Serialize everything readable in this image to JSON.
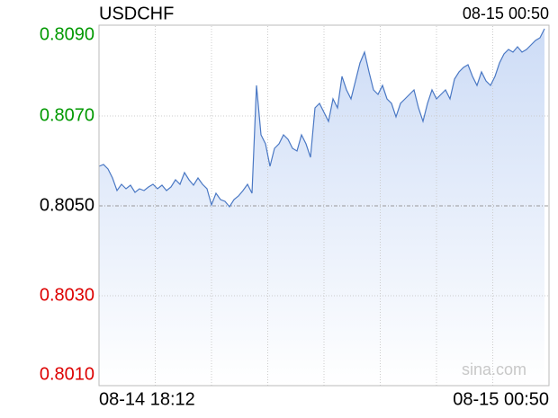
{
  "chart_data": {
    "type": "line",
    "title": "USDCHF",
    "updated": "08-15 00:50",
    "watermark": "sina.com",
    "categories": [
      "08-14 18:12",
      null,
      null,
      null,
      null,
      null,
      null,
      null,
      null,
      null,
      null,
      null,
      null,
      null,
      null,
      null,
      null,
      null,
      null,
      null,
      null,
      null,
      null,
      null,
      null,
      null,
      null,
      null,
      null,
      null,
      null,
      null,
      null,
      null,
      null,
      null,
      null,
      null,
      null,
      null,
      null,
      null,
      null,
      null,
      null,
      null,
      null,
      null,
      null,
      null,
      null,
      null,
      null,
      null,
      null,
      null,
      null,
      null,
      null,
      null,
      null,
      null,
      null,
      null,
      null,
      null,
      null,
      null,
      null,
      null,
      null,
      null,
      null,
      null,
      null,
      null,
      null,
      null,
      null,
      null,
      null,
      null,
      null,
      null,
      null,
      null,
      null,
      null,
      null,
      null,
      null,
      null,
      null,
      null,
      null,
      null,
      null,
      null,
      null,
      "08-15 00:50"
    ],
    "values": [
      0.80588,
      0.80592,
      0.80582,
      0.80562,
      0.80534,
      0.80548,
      0.80538,
      0.80546,
      0.8053,
      0.80538,
      0.80534,
      0.80542,
      0.80548,
      0.80538,
      0.80546,
      0.80534,
      0.80542,
      0.80558,
      0.80548,
      0.80574,
      0.80558,
      0.80546,
      0.80562,
      0.80548,
      0.80538,
      0.80502,
      0.80528,
      0.80514,
      0.8051,
      0.80498,
      0.80514,
      0.80522,
      0.80534,
      0.80548,
      0.80528,
      0.80768,
      0.80658,
      0.80638,
      0.80588,
      0.80628,
      0.80638,
      0.80658,
      0.80648,
      0.80628,
      0.80622,
      0.80658,
      0.80638,
      0.80608,
      0.80718,
      0.80728,
      0.80708,
      0.80688,
      0.80738,
      0.80718,
      0.80788,
      0.80758,
      0.80738,
      0.80778,
      0.80818,
      0.80842,
      0.80798,
      0.80758,
      0.80748,
      0.80768,
      0.80738,
      0.80728,
      0.80698,
      0.80728,
      0.80738,
      0.80748,
      0.80758,
      0.80718,
      0.80688,
      0.80728,
      0.80758,
      0.80738,
      0.80748,
      0.80758,
      0.80738,
      0.80782,
      0.80798,
      0.80808,
      0.80814,
      0.80788,
      0.80768,
      0.80798,
      0.80778,
      0.80768,
      0.80788,
      0.80818,
      0.80838,
      0.80848,
      0.80842,
      0.80854,
      0.80842,
      0.80848,
      0.80858,
      0.80868,
      0.80874,
      0.80894
    ],
    "color": "#4a78c4",
    "ylim": [
      0.801,
      0.809
    ],
    "yticks": [
      {
        "value": 0.801,
        "label": "0.8010"
      },
      {
        "value": 0.803,
        "label": "0.8030"
      },
      {
        "value": 0.805,
        "label": "0.8050"
      },
      {
        "value": 0.807,
        "label": "0.8070"
      },
      {
        "value": 0.809,
        "label": "0.8090"
      }
    ],
    "reference_value": 0.805,
    "up_color": "#009900",
    "down_color": "#dd0000",
    "flat_color": "#000000",
    "grid": true
  }
}
